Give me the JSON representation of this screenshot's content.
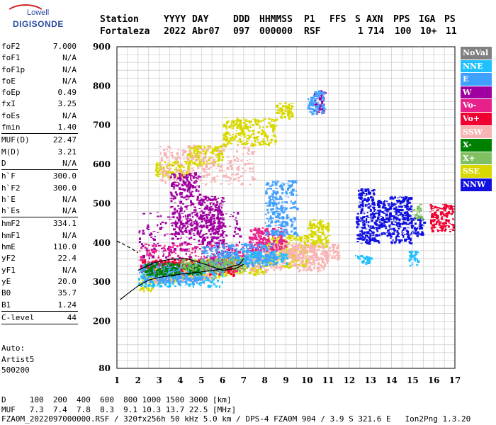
{
  "logo": {
    "line1": "Lowell",
    "line2": "DIGISONDE"
  },
  "header": {
    "labels": [
      "Station",
      "YYYY",
      "DAY",
      "DDD",
      "HHMMSS",
      "P1",
      "FFS",
      "S",
      "AXN",
      "PPS",
      "IGA",
      "PS"
    ],
    "values": [
      "Fortaleza",
      "2022",
      "Abr07",
      "097",
      "000000",
      "RSF",
      "1",
      "714",
      "100",
      "10+",
      "11"
    ]
  },
  "params": {
    "group1": [
      [
        "foF2",
        "7.000"
      ],
      [
        "foF1",
        "N/A"
      ],
      [
        "foF1p",
        "N/A"
      ],
      [
        "foE",
        "N/A"
      ],
      [
        "foEp",
        "0.49"
      ],
      [
        "fxI",
        "3.25"
      ],
      [
        "foEs",
        "N/A"
      ],
      [
        "fmin",
        "1.40"
      ]
    ],
    "group2": [
      [
        "MUF(D)",
        "22.47"
      ],
      [
        "M(D)",
        "3.21"
      ],
      [
        "D",
        "N/A"
      ]
    ],
    "group3": [
      [
        "h`F",
        "300.0"
      ],
      [
        "h`F2",
        "300.0"
      ],
      [
        "h`E",
        "N/A"
      ],
      [
        "h`Es",
        "N/A"
      ]
    ],
    "group4": [
      [
        "hmF2",
        "334.1"
      ],
      [
        "hmF1",
        "N/A"
      ],
      [
        "hmE",
        "110.0"
      ],
      [
        "yF2",
        "22.4"
      ],
      [
        "yF1",
        "N/A"
      ],
      [
        "yE",
        "20.0"
      ],
      [
        "B0",
        "35.7"
      ],
      [
        "B1",
        "1.24"
      ]
    ],
    "group5": [
      [
        "C-level",
        "44"
      ]
    ]
  },
  "auto": {
    "line1": "Auto:",
    "line2": "Artist5",
    "line3": "500200"
  },
  "legend": [
    {
      "label": "NoVal",
      "color": "#808080",
      "text": "#ffffff"
    },
    {
      "label": "NNE",
      "color": "#20c0ff",
      "text": "#ffffff"
    },
    {
      "label": "E",
      "color": "#40a0ff",
      "text": "#ffffff"
    },
    {
      "label": "W",
      "color": "#a000a0",
      "text": "#ffffff"
    },
    {
      "label": "Vo-",
      "color": "#e8208a",
      "text": "#ffffff"
    },
    {
      "label": "Vo+",
      "color": "#f00030",
      "text": "#ffffff"
    },
    {
      "label": "SSW",
      "color": "#f8b4b4",
      "text": "#ffffff"
    },
    {
      "label": "X-",
      "color": "#008000",
      "text": "#ffffff"
    },
    {
      "label": "X+",
      "color": "#80c060",
      "text": "#ffffff"
    },
    {
      "label": "SSE",
      "color": "#d8d800",
      "text": "#ffffff"
    },
    {
      "label": "NNW",
      "color": "#1010e0",
      "text": "#ffffff"
    }
  ],
  "footer": {
    "line1": "D     100  200  400  600  800 1000 1500 3000 [km]",
    "line2": "MUF   7.3  7.4  7.8  8.3  9.1 10.3 13.7 22.5 [MHz]",
    "line3": "FZA0M_2022097000000.RSF / 320fx256h 50 kHz 5.0 km / DPS-4 FZA0M 904 / 3.9 S 321.6 E   Ion2Png 1.3.20"
  },
  "chart_data": {
    "type": "scatter",
    "xlabel": "",
    "ylabel": "",
    "xlim": [
      1,
      17
    ],
    "ylim": [
      80,
      900
    ],
    "x_ticks": [
      1,
      2,
      3,
      4,
      5,
      6,
      7,
      8,
      9,
      10,
      11,
      12,
      13,
      14,
      15,
      16,
      17
    ],
    "y_ticks": [
      80,
      200,
      300,
      400,
      500,
      600,
      700,
      800,
      900
    ],
    "grid": true,
    "legend_position": "right",
    "series": [
      {
        "name": "SSE",
        "color": "#d8d800",
        "clusters": [
          [
            2.0,
            280,
            2.7,
            320
          ],
          [
            2.7,
            300,
            4.0,
            340
          ],
          [
            4.0,
            310,
            6.0,
            360
          ],
          [
            6.0,
            320,
            8.0,
            370
          ],
          [
            8.0,
            340,
            10.0,
            420
          ],
          [
            10.0,
            390,
            11.0,
            460
          ],
          [
            2.8,
            570,
            4.4,
            610
          ],
          [
            4.3,
            600,
            6.0,
            650
          ],
          [
            6.0,
            650,
            8.5,
            720
          ],
          [
            8.5,
            720,
            9.3,
            760
          ]
        ]
      },
      {
        "name": "SSW",
        "color": "#f8b4b4",
        "clusters": [
          [
            2.5,
            300,
            5.5,
            330
          ],
          [
            6.5,
            330,
            11.0,
            380
          ],
          [
            8.0,
            360,
            11.5,
            400
          ],
          [
            3.0,
            550,
            7.5,
            650
          ]
        ]
      },
      {
        "name": "W",
        "color": "#a000a0",
        "clusters": [
          [
            2.0,
            340,
            6.8,
            480
          ],
          [
            3.5,
            420,
            4.9,
            580
          ],
          [
            4.9,
            400,
            6.0,
            520
          ],
          [
            10.3,
            730,
            10.8,
            790
          ]
        ]
      },
      {
        "name": "Vo-",
        "color": "#e8208a",
        "clusters": [
          [
            2.0,
            330,
            7.0,
            400
          ],
          [
            7.2,
            380,
            9.0,
            440
          ]
        ]
      },
      {
        "name": "Vo+",
        "color": "#f00030",
        "clusters": [
          [
            2.1,
            320,
            6.5,
            360
          ],
          [
            15.8,
            430,
            16.9,
            500
          ]
        ]
      },
      {
        "name": "NNE",
        "color": "#20c0ff",
        "clusters": [
          [
            2.0,
            290,
            6.0,
            340
          ],
          [
            6.0,
            350,
            9.0,
            380
          ],
          [
            12.2,
            350,
            13.0,
            370
          ],
          [
            14.8,
            340,
            15.2,
            380
          ]
        ]
      },
      {
        "name": "E",
        "color": "#40a0ff",
        "clusters": [
          [
            2.2,
            300,
            5.0,
            350
          ],
          [
            5.0,
            340,
            8.5,
            400
          ],
          [
            8.0,
            420,
            9.5,
            560
          ],
          [
            10.0,
            730,
            10.8,
            790
          ]
        ]
      },
      {
        "name": "NNW",
        "color": "#1010e0",
        "clusters": [
          [
            12.3,
            400,
            13.4,
            480
          ],
          [
            13.3,
            420,
            13.9,
            510
          ],
          [
            13.9,
            400,
            14.9,
            520
          ],
          [
            14.9,
            420,
            15.5,
            470
          ],
          [
            12.4,
            480,
            13.2,
            540
          ]
        ]
      },
      {
        "name": "X-",
        "color": "#008000",
        "clusters": [
          [
            2.3,
            320,
            5.0,
            350
          ]
        ]
      },
      {
        "name": "X+",
        "color": "#80c060",
        "clusters": [
          [
            4.0,
            330,
            7.0,
            360
          ],
          [
            15.0,
            460,
            15.4,
            500
          ]
        ]
      }
    ],
    "annotations": [
      {
        "name": "virtual-height-trace",
        "color": "#000000",
        "points": [
          [
            1.15,
            255
          ],
          [
            1.5,
            270
          ],
          [
            2.0,
            290
          ],
          [
            2.5,
            305
          ],
          [
            3.0,
            312
          ],
          [
            4.0,
            320
          ],
          [
            5.0,
            326
          ],
          [
            6.0,
            333
          ],
          [
            6.8,
            345
          ],
          [
            7.0,
            360
          ]
        ]
      },
      {
        "name": "profile-upper",
        "color": "#000000",
        "points": [
          [
            2.0,
            330
          ],
          [
            2.8,
            350
          ],
          [
            3.5,
            358
          ],
          [
            4.3,
            360
          ],
          [
            5.2,
            345
          ],
          [
            6.0,
            330
          ],
          [
            6.6,
            334
          ],
          [
            7.0,
            345
          ]
        ]
      },
      {
        "name": "profile-dashed",
        "color": "#000000",
        "points": [
          [
            1.0,
            405
          ],
          [
            1.7,
            385
          ],
          [
            2.0,
            375
          ]
        ]
      }
    ]
  }
}
